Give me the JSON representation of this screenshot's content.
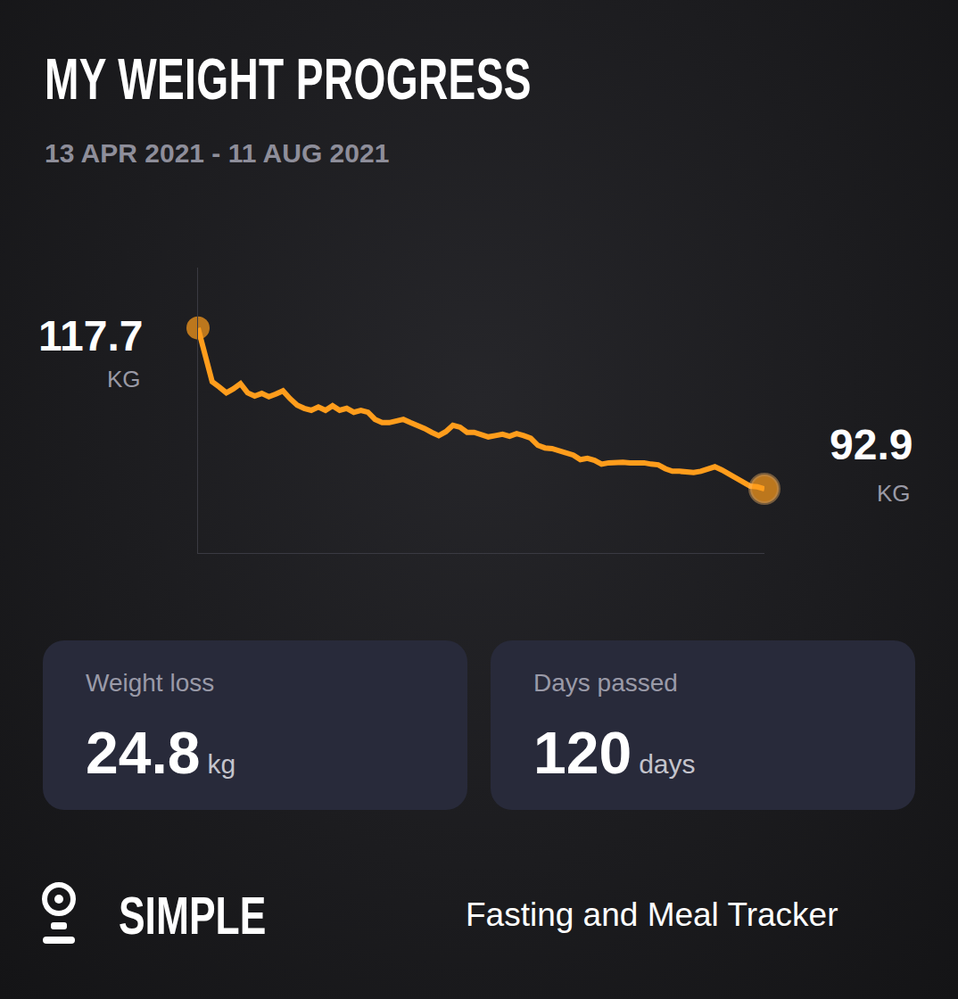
{
  "chart_data": {
    "type": "line",
    "title": "MY WEIGHT PROGRESS",
    "subtitle": "13 APR 2021 - 11 AUG 2021",
    "categories": [
      null,
      null,
      null,
      null,
      null,
      null,
      null,
      null,
      null,
      null,
      null,
      null,
      null,
      null,
      null,
      null,
      null,
      null,
      null,
      null,
      null,
      null,
      null,
      null,
      null,
      null,
      null,
      null,
      null,
      null,
      null,
      null,
      null,
      null,
      null,
      null,
      null,
      null,
      null,
      null,
      null,
      null,
      null,
      null,
      null,
      null,
      null,
      null,
      null,
      null,
      null,
      null,
      null,
      null,
      null,
      null,
      null,
      null,
      null,
      null,
      null,
      null,
      null,
      null,
      null,
      null,
      null,
      null,
      null,
      null,
      null,
      null,
      null,
      null,
      null,
      null,
      null,
      null,
      null,
      null,
      null
    ],
    "values": [
      117.7,
      113.5,
      109.4,
      108.6,
      107.7,
      108.3,
      109.1,
      107.7,
      107.2,
      107.6,
      107.1,
      107.5,
      108.0,
      106.8,
      105.8,
      105.3,
      105.0,
      105.5,
      105.0,
      105.7,
      105.0,
      105.3,
      104.7,
      105.0,
      104.7,
      103.6,
      103.1,
      103.1,
      103.3,
      103.6,
      103.1,
      102.7,
      102.2,
      101.6,
      101.1,
      101.7,
      102.7,
      102.4,
      101.6,
      101.6,
      101.3,
      100.9,
      101.1,
      101.3,
      101.0,
      101.4,
      101.1,
      100.7,
      99.6,
      99.2,
      99.1,
      98.8,
      98.5,
      98.1,
      97.4,
      97.6,
      97.3,
      96.7,
      96.9,
      97.0,
      97.0,
      96.9,
      97.0,
      96.9,
      96.7,
      96.6,
      96.0,
      95.6,
      95.6,
      95.5,
      95.4,
      95.6,
      96.0,
      96.3,
      95.8,
      95.2,
      94.7,
      93.9,
      93.3,
      93.2,
      92.9
    ],
    "color": "#ff9d1c",
    "ylim": [
      83,
      127
    ],
    "yticks": [],
    "grid": false,
    "tick_labels": false,
    "annotations": [
      {
        "x": 0,
        "y": 117.7,
        "text": "117.7",
        "unit": "KG"
      },
      {
        "x": 80,
        "y": 92.9,
        "text": "92.9",
        "unit": "KG"
      }
    ]
  },
  "stats": [
    {
      "label": "Weight loss",
      "value": 24.8,
      "unit": "kg"
    },
    {
      "label": "Days passed",
      "value": 120,
      "unit": "days"
    }
  ],
  "brand": {
    "name": "SIMPLE",
    "tagline": "Fasting and Meal Tracker"
  }
}
